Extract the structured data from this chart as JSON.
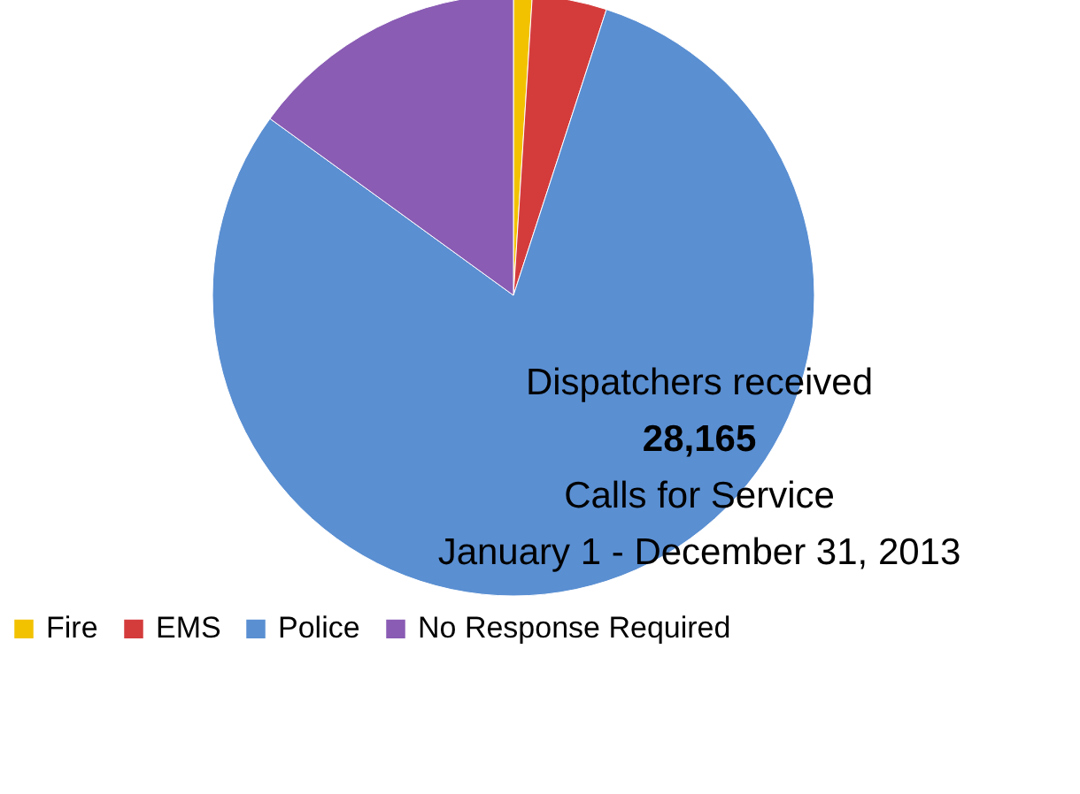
{
  "chart_data": {
    "type": "pie",
    "categories": [
      "Fire",
      "EMS",
      "Police",
      "No Response Required"
    ],
    "values": [
      1,
      4,
      80,
      15
    ],
    "colors": [
      "#f2c200",
      "#d43c3c",
      "#5a8fd2",
      "#8a5cb4"
    ],
    "legend": "bottom",
    "annotations": [
      "Dispatchers received",
      "28,165",
      "Calls for Service",
      "January 1 - December 31, 2013"
    ]
  }
}
